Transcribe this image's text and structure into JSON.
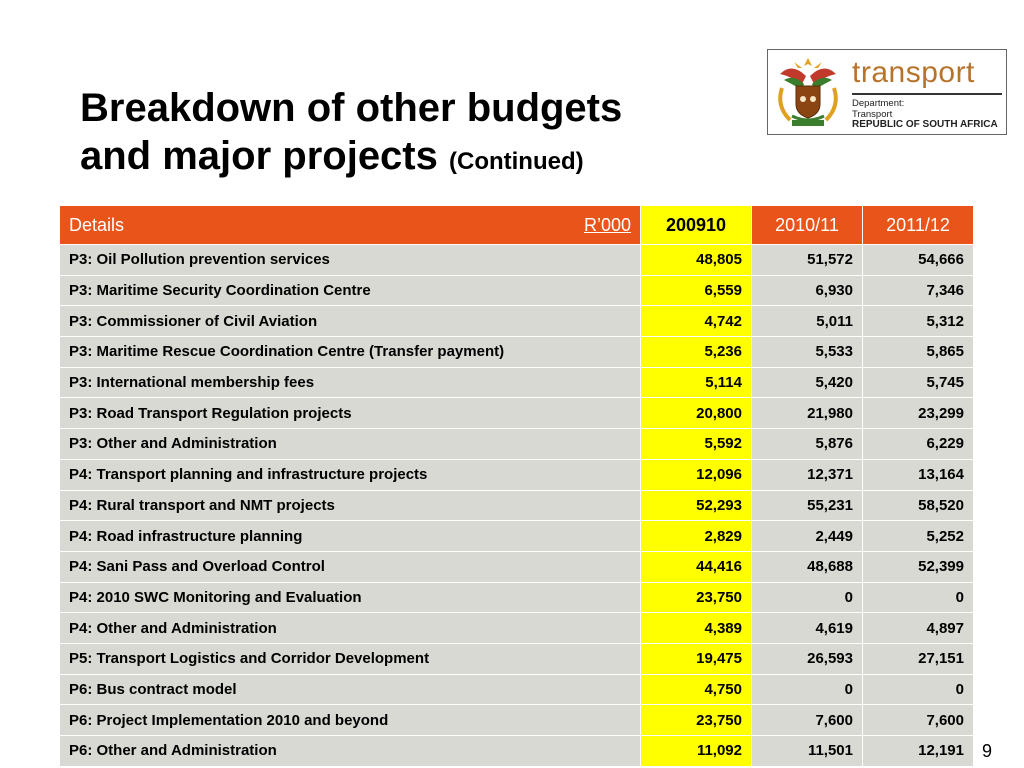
{
  "title": {
    "line1": "Breakdown of other budgets",
    "line2": "and major projects",
    "continued": "(Continued)"
  },
  "logo": {
    "brand": "transport",
    "dept_line1": "Department:",
    "dept_line2": "Transport",
    "dept_line3": "REPUBLIC OF SOUTH AFRICA",
    "colors": {
      "brand": "#b8732b"
    }
  },
  "table": {
    "headers": {
      "details": "Details",
      "unit": "R’000",
      "year1": "200910",
      "year2": "2010/11",
      "year3": "2011/12"
    },
    "colors": {
      "header": "#e8541a",
      "highlight": "#ffff00",
      "row": "#d9d9d3"
    },
    "rows": [
      {
        "label": "P3: Oil Pollution prevention services",
        "y1": "48,805",
        "y2": "51,572",
        "y3": "54,666"
      },
      {
        "label": "P3: Maritime Security Coordination Centre",
        "y1": "6,559",
        "y2": "6,930",
        "y3": "7,346"
      },
      {
        "label": "P3: Commissioner of Civil Aviation",
        "y1": "4,742",
        "y2": "5,011",
        "y3": "5,312"
      },
      {
        "label": "P3: Maritime Rescue Coordination Centre (Transfer payment)",
        "y1": "5,236",
        "y2": "5,533",
        "y3": "5,865"
      },
      {
        "label": "P3: International membership fees",
        "y1": "5,114",
        "y2": "5,420",
        "y3": "5,745"
      },
      {
        "label": "P3: Road Transport Regulation projects",
        "y1": "20,800",
        "y2": "21,980",
        "y3": "23,299"
      },
      {
        "label": "P3: Other and Administration",
        "y1": "5,592",
        "y2": "5,876",
        "y3": "6,229"
      },
      {
        "label": "P4: Transport planning and infrastructure projects",
        "y1": "12,096",
        "y2": "12,371",
        "y3": "13,164"
      },
      {
        "label": "P4: Rural transport and NMT projects",
        "y1": "52,293",
        "y2": "55,231",
        "y3": "58,520"
      },
      {
        "label": "P4: Road infrastructure planning",
        "y1": "2,829",
        "y2": "2,449",
        "y3": "5,252"
      },
      {
        "label": "P4: Sani Pass and Overload Control",
        "y1": "44,416",
        "y2": "48,688",
        "y3": "52,399"
      },
      {
        "label": "P4: 2010 SWC Monitoring and Evaluation",
        "y1": "23,750",
        "y2": "0",
        "y3": "0"
      },
      {
        "label": "P4: Other and Administration",
        "y1": "4,389",
        "y2": "4,619",
        "y3": "4,897"
      },
      {
        "label": "P5: Transport Logistics and Corridor Development",
        "y1": "19,475",
        "y2": "26,593",
        "y3": "27,151"
      },
      {
        "label": "P6: Bus contract model",
        "y1": "4,750",
        "y2": "0",
        "y3": "0"
      },
      {
        "label": "P6: Project Implementation 2010 and beyond",
        "y1": "23,750",
        "y2": "7,600",
        "y3": "7,600"
      },
      {
        "label": "P6: Other and Administration",
        "y1": "11,092",
        "y2": "11,501",
        "y3": "12,191"
      }
    ]
  },
  "page_number": "9"
}
